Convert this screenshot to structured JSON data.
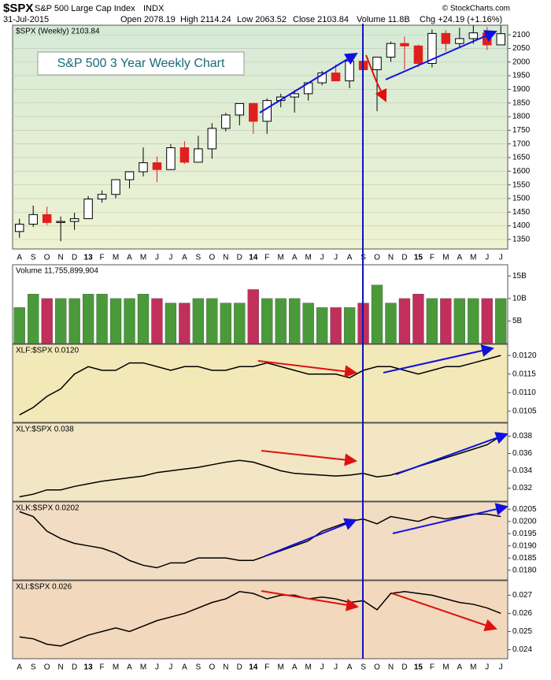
{
  "header": {
    "symbol": "$SPX",
    "name": "S&P 500 Large Cap Index",
    "exchange": "INDX",
    "date": "31-Jul-2015",
    "open": "Open 2078.19",
    "high": "High 2114.24",
    "low": "Low 2063.52",
    "close": "Close 2103.84",
    "volume": "Volume 11.8B",
    "change": "Chg +24.19 (+1.16%)",
    "credit": "© StockCharts.com"
  },
  "chart_data": [
    {
      "type": "ohlc",
      "legend": "$SPX (Weekly) 2103.84",
      "annotation": "S&P 500 3 Year Weekly Chart",
      "categories": [
        "A",
        "S",
        "O",
        "N",
        "D",
        "13",
        "F",
        "M",
        "A",
        "M",
        "J",
        "J",
        "A",
        "S",
        "O",
        "N",
        "D",
        "14",
        "F",
        "M",
        "A",
        "M",
        "J",
        "J",
        "A",
        "S",
        "O",
        "N",
        "D",
        "15",
        "F",
        "M",
        "A",
        "M",
        "J",
        "J"
      ],
      "open": [
        1379,
        1406,
        1441,
        1412,
        1416,
        1426,
        1498,
        1515,
        1569,
        1598,
        1631,
        1606,
        1686,
        1633,
        1682,
        1757,
        1806,
        1848,
        1783,
        1859,
        1872,
        1884,
        1924,
        1960,
        1931,
        2003,
        1972,
        2018,
        2068,
        2059,
        1995,
        2105,
        2068,
        2086,
        2107,
        2063
      ],
      "high": [
        1426,
        1474,
        1470,
        1434,
        1448,
        1509,
        1530,
        1570,
        1598,
        1687,
        1654,
        1699,
        1710,
        1730,
        1776,
        1814,
        1849,
        1851,
        1867,
        1884,
        1897,
        1925,
        1968,
        1991,
        2005,
        2019,
        2018,
        2075,
        2093,
        2064,
        2119,
        2117,
        2126,
        2135,
        2129,
        2133
      ],
      "low": [
        1356,
        1396,
        1403,
        1343,
        1385,
        1426,
        1485,
        1501,
        1537,
        1581,
        1560,
        1604,
        1627,
        1633,
        1646,
        1746,
        1768,
        1737,
        1737,
        1834,
        1815,
        1859,
        1915,
        1930,
        1904,
        1964,
        1820,
        2001,
        1972,
        1981,
        1980,
        2039,
        2056,
        2067,
        2044,
        2063
      ],
      "close": [
        1406,
        1441,
        1412,
        1416,
        1426,
        1498,
        1515,
        1569,
        1598,
        1631,
        1606,
        1686,
        1633,
        1682,
        1757,
        1806,
        1848,
        1783,
        1859,
        1872,
        1884,
        1924,
        1960,
        1931,
        2003,
        1972,
        2018,
        2068,
        2059,
        1995,
        2105,
        2068,
        2086,
        2107,
        2063,
        2104
      ],
      "up_color": "#000000",
      "down_color": "#e0201e",
      "ylim": [
        1315,
        2135
      ],
      "yticks": [
        1350,
        1400,
        1450,
        1500,
        1550,
        1600,
        1650,
        1700,
        1750,
        1800,
        1850,
        1900,
        1950,
        2000,
        2050,
        2100
      ],
      "grid": true
    },
    {
      "type": "bar",
      "legend": "Volume 11,755,899,904",
      "values": [
        8,
        11,
        10,
        10,
        10,
        11,
        11,
        10,
        10,
        11,
        10,
        9,
        9,
        10,
        10,
        9,
        9,
        12,
        10,
        10,
        10,
        9,
        8,
        8,
        8,
        9,
        13,
        9,
        10,
        11,
        10,
        10,
        10,
        10,
        10,
        10
      ],
      "up_color": "#4a9a3a",
      "down_color": "#c0305a",
      "ylim": [
        0,
        17.5
      ],
      "yticks": [
        {
          "value": 5,
          "label": "5B"
        },
        {
          "value": 10,
          "label": "10B"
        },
        {
          "value": 15,
          "label": "15B"
        }
      ]
    },
    {
      "type": "line",
      "legend": "XLF:$SPX 0.0120",
      "color": "#000000",
      "values": [
        0.0104,
        0.0106,
        0.0109,
        0.0111,
        0.0115,
        0.0117,
        0.0116,
        0.0116,
        0.0118,
        0.0118,
        0.0117,
        0.0116,
        0.0117,
        0.0117,
        0.0116,
        0.0116,
        0.0117,
        0.0117,
        0.0118,
        0.0117,
        0.0116,
        0.0115,
        0.0115,
        0.0115,
        0.0114,
        0.0116,
        0.0117,
        0.0117,
        0.0116,
        0.0115,
        0.0116,
        0.0117,
        0.0117,
        0.0118,
        0.0119,
        0.012
      ],
      "ylim": [
        0.0102,
        0.0123
      ],
      "yticks": [
        0.0105,
        {
          "value": 0.011,
          "label": "0.0110"
        },
        0.0115,
        {
          "value": 0.012,
          "label": "0.0120"
        }
      ]
    },
    {
      "type": "line",
      "legend": "XLY:$SPX 0.038",
      "color": "#000000",
      "values": [
        0.031,
        0.0313,
        0.0318,
        0.0318,
        0.0322,
        0.0325,
        0.0328,
        0.033,
        0.0332,
        0.0334,
        0.0338,
        0.034,
        0.0342,
        0.0344,
        0.0347,
        0.035,
        0.0352,
        0.035,
        0.0345,
        0.034,
        0.0337,
        0.0336,
        0.0335,
        0.0334,
        0.0335,
        0.0337,
        0.0333,
        0.0335,
        0.034,
        0.0345,
        0.035,
        0.0355,
        0.036,
        0.0365,
        0.037,
        0.038
      ],
      "ylim": [
        0.0305,
        0.0395
      ],
      "yticks": [
        0.032,
        0.034,
        0.036,
        0.038
      ]
    },
    {
      "type": "line",
      "legend": "XLK:$SPX 0.0202",
      "color": "#000000",
      "values": [
        0.0204,
        0.0202,
        0.0196,
        0.0193,
        0.0191,
        0.019,
        0.0189,
        0.0187,
        0.0184,
        0.0182,
        0.0181,
        0.0183,
        0.0183,
        0.0185,
        0.0185,
        0.0185,
        0.0184,
        0.0184,
        0.0186,
        0.0188,
        0.019,
        0.0192,
        0.0196,
        0.0198,
        0.02,
        0.0201,
        0.0199,
        0.0202,
        0.0201,
        0.02,
        0.0202,
        0.0201,
        0.0202,
        0.0203,
        0.0203,
        0.0202
      ],
      "ylim": [
        0.0176,
        0.0208
      ],
      "yticks": [
        {
          "value": 0.018,
          "label": "0.0180"
        },
        0.0185,
        {
          "value": 0.019,
          "label": "0.0190"
        },
        0.0195,
        {
          "value": 0.02,
          "label": "0.0200"
        },
        0.0205
      ]
    },
    {
      "type": "line",
      "legend": "XLI:$SPX 0.026",
      "color": "#000000",
      "categories": [
        "A",
        "S",
        "O",
        "N",
        "D",
        "13",
        "F",
        "M",
        "A",
        "M",
        "J",
        "J",
        "A",
        "S",
        "O",
        "N",
        "D",
        "14",
        "F",
        "M",
        "A",
        "M",
        "J",
        "J",
        "A",
        "S",
        "O",
        "N",
        "D",
        "15",
        "F",
        "M",
        "A",
        "M",
        "J",
        "J"
      ],
      "values": [
        0.0247,
        0.0246,
        0.0243,
        0.0242,
        0.0245,
        0.0248,
        0.025,
        0.0252,
        0.025,
        0.0253,
        0.0256,
        0.0258,
        0.026,
        0.0263,
        0.0266,
        0.0268,
        0.0272,
        0.0271,
        0.0268,
        0.027,
        0.027,
        0.0268,
        0.0269,
        0.0268,
        0.0266,
        0.0267,
        0.0262,
        0.0271,
        0.0272,
        0.0271,
        0.027,
        0.0268,
        0.0266,
        0.0265,
        0.0263,
        0.026
      ],
      "ylim": [
        0.0235,
        0.0278
      ],
      "yticks": [
        0.024,
        0.025,
        0.026,
        0.027
      ]
    }
  ]
}
